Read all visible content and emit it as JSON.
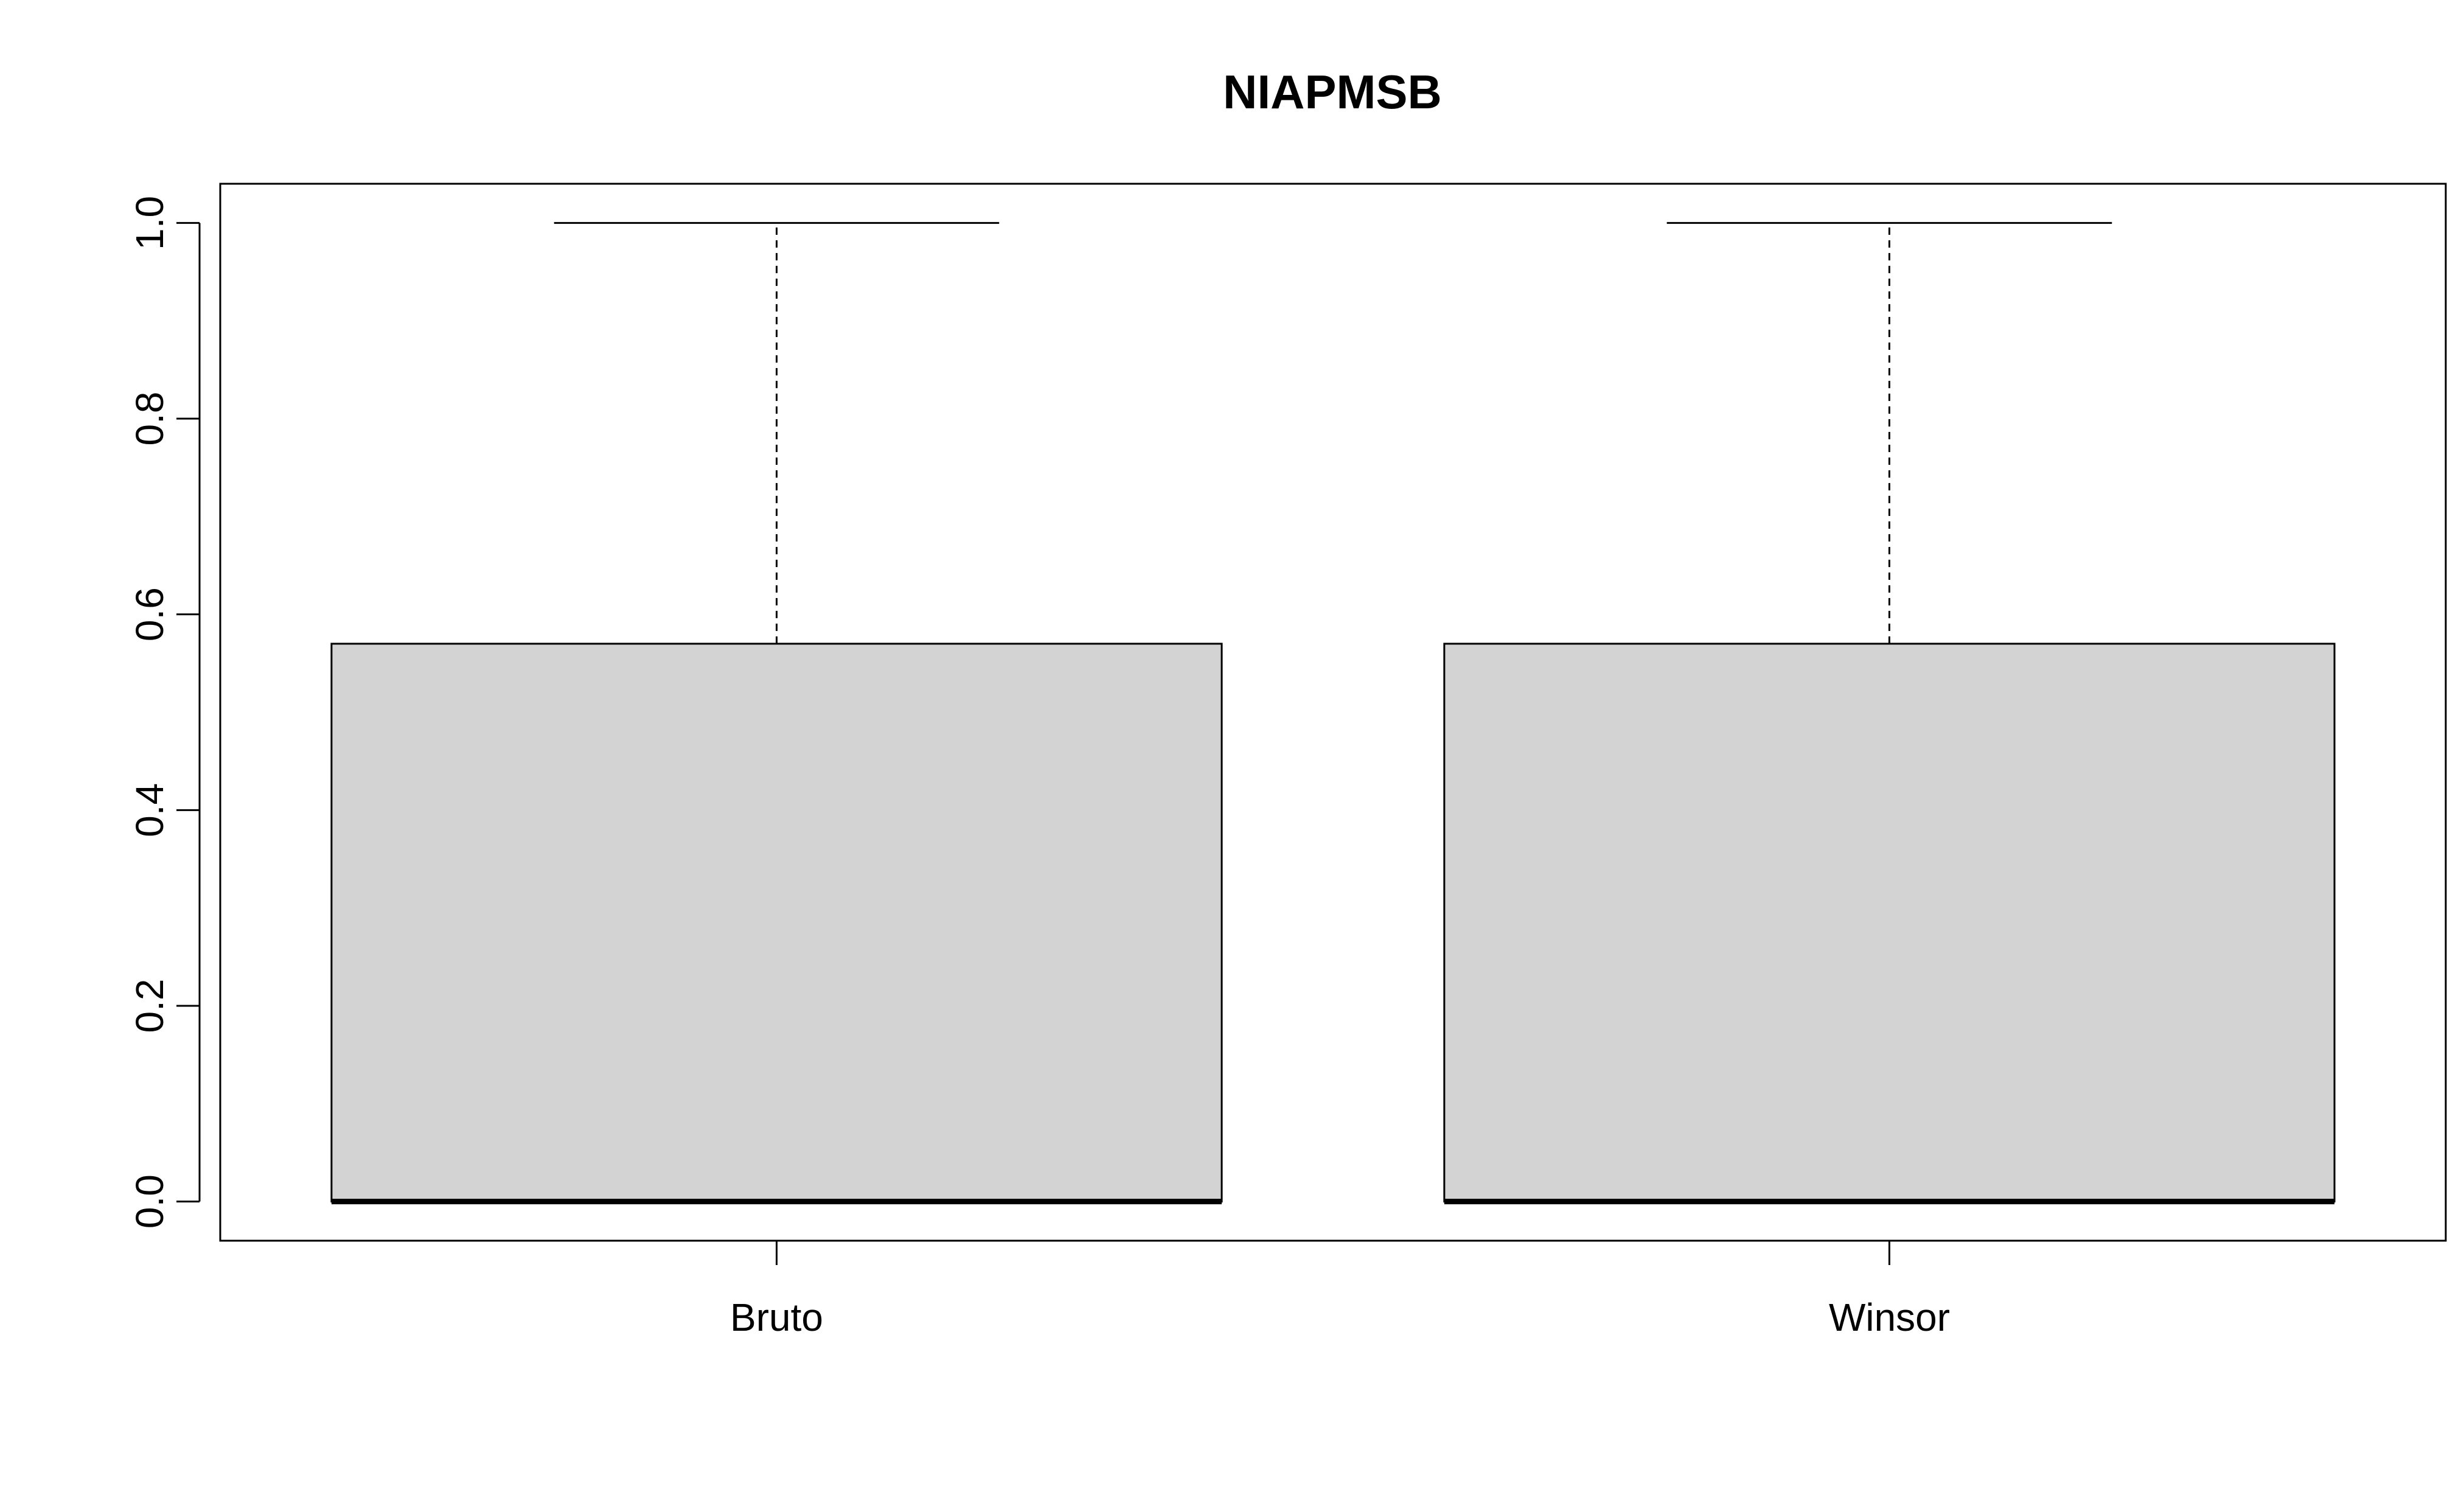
{
  "chart_data": {
    "type": "boxplot",
    "title": "NIAPMSB",
    "xlabel": "",
    "ylabel": "",
    "categories": [
      "Bruto",
      "Winsor"
    ],
    "boxes": [
      {
        "name": "Bruto",
        "min": 0.0,
        "q1": 0.0,
        "median": 0.0,
        "q3": 0.57,
        "max": 1.0
      },
      {
        "name": "Winsor",
        "min": 0.0,
        "q1": 0.0,
        "median": 0.0,
        "q3": 0.57,
        "max": 1.0
      }
    ],
    "ylim": [
      -0.04,
      1.04
    ],
    "yticks": [
      0.0,
      0.2,
      0.4,
      0.6,
      0.8,
      1.0
    ],
    "ytick_labels": [
      "0.0",
      "0.2",
      "0.4",
      "0.6",
      "0.8",
      "1.0"
    ],
    "grid": false,
    "legend": "none",
    "colors": {
      "box_fill": "#d3d3d3",
      "stroke": "#000000",
      "background": "#ffffff"
    }
  }
}
